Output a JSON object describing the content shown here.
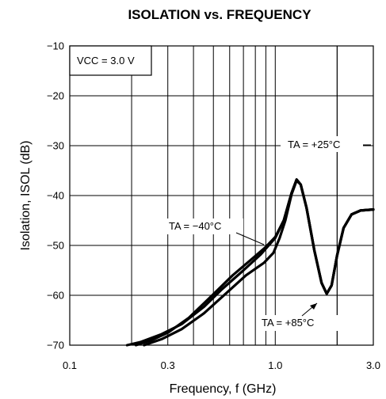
{
  "chart_data": {
    "type": "line",
    "title": "ISOLATION vs. FREQUENCY",
    "xlabel": "Frequency, f (GHz)",
    "ylabel": "Isolation, ISOL (dB)",
    "x_scale": "log",
    "xlim": [
      0.1,
      3.0
    ],
    "ylim": [
      -70,
      -10
    ],
    "x_ticks": [
      {
        "value": 0.1,
        "label": "0.1"
      },
      {
        "value": 0.3,
        "label": "0.3"
      },
      {
        "value": 1.0,
        "label": "1.0"
      },
      {
        "value": 3.0,
        "label": "3.0"
      }
    ],
    "y_ticks": [
      {
        "value": -10,
        "label": "−10"
      },
      {
        "value": -20,
        "label": "−20"
      },
      {
        "value": -30,
        "label": "−30"
      },
      {
        "value": -40,
        "label": "−40"
      },
      {
        "value": -50,
        "label": "−50"
      },
      {
        "value": -60,
        "label": "−60"
      },
      {
        "value": -70,
        "label": "−70"
      }
    ],
    "grid": true,
    "condition_box": "VCC = 3.0 V",
    "series": [
      {
        "name": "TA = +25°C",
        "color": "#000000",
        "points": [
          [
            0.19,
            -70
          ],
          [
            0.22,
            -69.4
          ],
          [
            0.28,
            -67.8
          ],
          [
            0.35,
            -65.8
          ],
          [
            0.45,
            -62.3
          ],
          [
            0.55,
            -58.8
          ],
          [
            0.7,
            -55
          ],
          [
            0.85,
            -51.8
          ],
          [
            1.0,
            -48.5
          ],
          [
            1.1,
            -45
          ],
          [
            1.2,
            -39.5
          ],
          [
            1.27,
            -36.8
          ],
          [
            1.33,
            -37.8
          ],
          [
            1.42,
            -42.5
          ],
          [
            1.55,
            -51
          ],
          [
            1.68,
            -57.5
          ],
          [
            1.78,
            -59.7
          ],
          [
            1.88,
            -58
          ],
          [
            2.0,
            -52
          ],
          [
            2.15,
            -46.5
          ],
          [
            2.35,
            -43.8
          ],
          [
            2.6,
            -43
          ],
          [
            3.0,
            -42.8
          ]
        ]
      },
      {
        "name": "TA = −40°C",
        "color": "#000000",
        "points": [
          [
            0.21,
            -70
          ],
          [
            0.25,
            -69
          ],
          [
            0.3,
            -67.5
          ],
          [
            0.38,
            -64.5
          ],
          [
            0.5,
            -59.8
          ],
          [
            0.62,
            -56
          ],
          [
            0.78,
            -52.5
          ],
          [
            0.9,
            -50.3
          ],
          [
            1.0,
            -48.3
          ],
          [
            1.1,
            -45
          ],
          [
            1.2,
            -39.5
          ],
          [
            1.27,
            -36.8
          ],
          [
            1.33,
            -37.8
          ],
          [
            1.42,
            -42.5
          ],
          [
            1.55,
            -51
          ],
          [
            1.68,
            -57.5
          ],
          [
            1.78,
            -59.7
          ],
          [
            1.88,
            -58
          ],
          [
            2.0,
            -52
          ],
          [
            2.15,
            -46.5
          ],
          [
            2.35,
            -43.8
          ],
          [
            2.6,
            -43
          ],
          [
            3.0,
            -42.8
          ]
        ]
      },
      {
        "name": "TA = +85°C",
        "color": "#000000",
        "points": [
          [
            0.23,
            -70
          ],
          [
            0.28,
            -68.8
          ],
          [
            0.35,
            -66.8
          ],
          [
            0.45,
            -63.6
          ],
          [
            0.58,
            -59.5
          ],
          [
            0.72,
            -56
          ],
          [
            0.88,
            -53.5
          ],
          [
            0.98,
            -51.5
          ],
          [
            1.05,
            -48.5
          ],
          [
            1.12,
            -45
          ],
          [
            1.2,
            -39.8
          ],
          [
            1.27,
            -37
          ],
          [
            1.33,
            -37.8
          ],
          [
            1.42,
            -42.5
          ],
          [
            1.55,
            -51
          ],
          [
            1.68,
            -57.5
          ],
          [
            1.78,
            -59.7
          ],
          [
            1.88,
            -58
          ],
          [
            2.0,
            -52
          ],
          [
            2.15,
            -46.5
          ],
          [
            2.35,
            -43.8
          ],
          [
            2.6,
            -43
          ],
          [
            3.0,
            -42.8
          ]
        ]
      }
    ],
    "annotations": [
      {
        "name": "annot-25c",
        "text": "TA = +25°C",
        "series": 0
      },
      {
        "name": "annot-m40c",
        "text": "TA = −40°C",
        "series": 1
      },
      {
        "name": "annot-85c",
        "text": "TA = +85°C",
        "series": 2
      }
    ]
  }
}
